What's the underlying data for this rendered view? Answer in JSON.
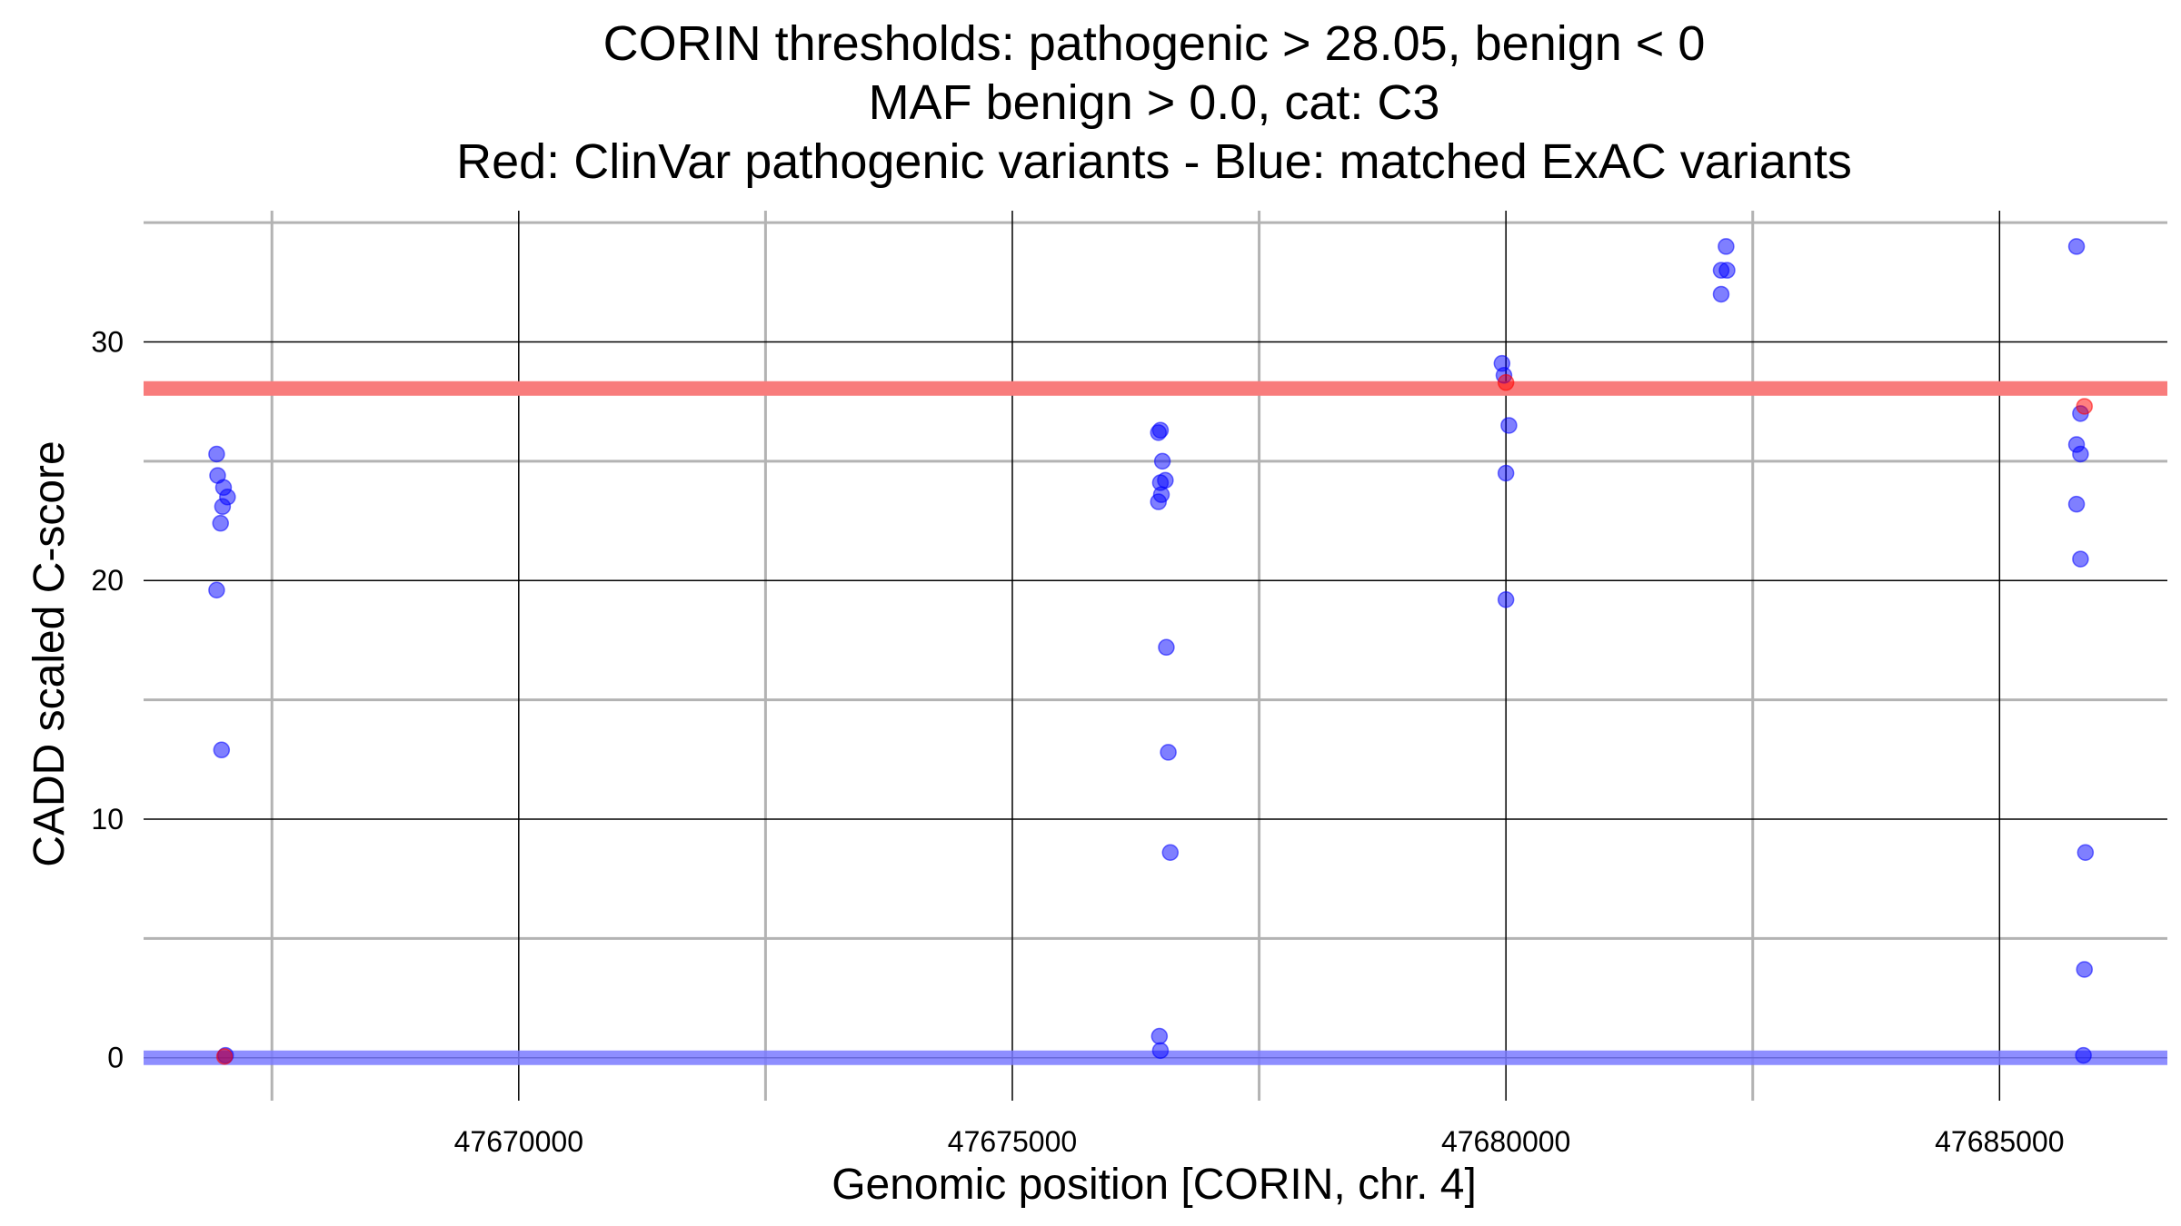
{
  "chart_data": {
    "type": "scatter",
    "title_lines": [
      "CORIN thresholds: pathogenic > 28.05, benign < 0",
      "MAF benign > 0.0, cat: C3",
      "Red: ClinVar pathogenic variants - Blue: matched ExAC variants"
    ],
    "xlabel": "Genomic position [CORIN, chr. 4]",
    "ylabel": "CADD scaled C-score",
    "xlim": [
      47666200,
      47686700
    ],
    "ylim": [
      -1.8,
      35.5
    ],
    "x_ticks": [
      47670000,
      47675000,
      47680000,
      47685000
    ],
    "x_tick_labels": [
      "47670000",
      "47675000",
      "47680000",
      "47685000"
    ],
    "y_ticks": [
      0,
      10,
      20,
      30
    ],
    "y_tick_labels": [
      "0",
      "10",
      "20",
      "30"
    ],
    "grid": true,
    "thresholds": [
      {
        "name": "pathogenic",
        "value": 28.05,
        "color": "#f87c7c"
      },
      {
        "name": "benign",
        "value": 0,
        "color": "#7a7aff"
      }
    ],
    "colors": {
      "pathogenic": "#ff0000",
      "benign": "#0000ff",
      "major_grid": "#000000",
      "minor_grid": "#b3b3b3"
    },
    "series": [
      {
        "color": "#0000ff",
        "points": [
          [
            47666940,
            25.3
          ],
          [
            47666950,
            24.4
          ],
          [
            47667010,
            23.9
          ],
          [
            47667050,
            23.5
          ],
          [
            47667000,
            23.1
          ],
          [
            47666980,
            22.4
          ],
          [
            47666940,
            19.6
          ],
          [
            47666990,
            12.9
          ],
          [
            47667030,
            0.1
          ],
          [
            47676500,
            26.3
          ],
          [
            47676480,
            26.2
          ],
          [
            47676520,
            25.0
          ],
          [
            47676550,
            24.2
          ],
          [
            47676500,
            24.1
          ],
          [
            47676510,
            23.6
          ],
          [
            47676480,
            23.3
          ],
          [
            47676560,
            17.2
          ],
          [
            47676580,
            12.8
          ],
          [
            47676600,
            8.6
          ],
          [
            47676490,
            0.9
          ],
          [
            47676500,
            0.3
          ],
          [
            47679960,
            29.1
          ],
          [
            47679980,
            28.6
          ],
          [
            47680030,
            26.5
          ],
          [
            47680000,
            24.5
          ],
          [
            47680000,
            19.2
          ],
          [
            47682230,
            34.0
          ],
          [
            47682180,
            33.0
          ],
          [
            47682240,
            33.0
          ],
          [
            47682180,
            32.0
          ],
          [
            47685780,
            34.0
          ],
          [
            47685820,
            27.0
          ],
          [
            47685780,
            25.7
          ],
          [
            47685820,
            25.3
          ],
          [
            47685780,
            23.2
          ],
          [
            47685820,
            20.9
          ],
          [
            47685870,
            8.6
          ],
          [
            47685860,
            3.7
          ],
          [
            47685850,
            0.1
          ]
        ]
      },
      {
        "color": "#ff0000",
        "points": [
          [
            47667020,
            0.05
          ],
          [
            47680000,
            28.3
          ],
          [
            47685860,
            27.3
          ]
        ]
      }
    ]
  }
}
